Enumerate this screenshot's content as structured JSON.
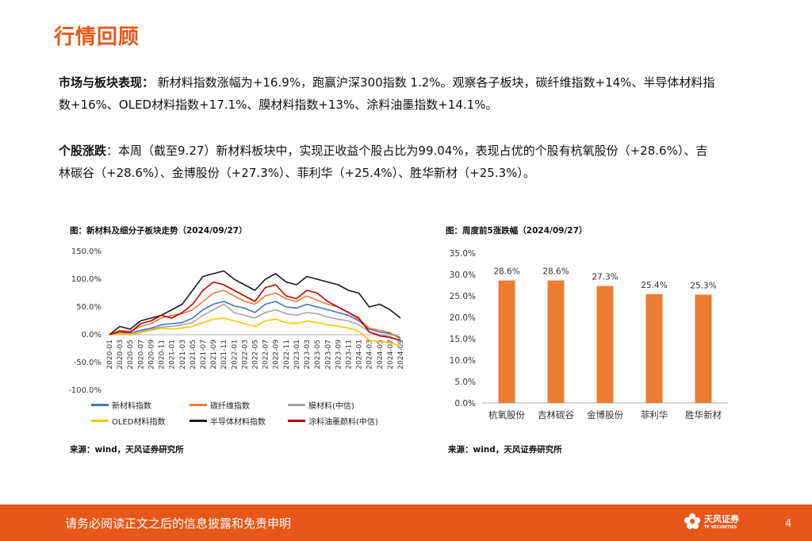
{
  "header": {
    "title": "行情回顾"
  },
  "paragraph1": {
    "label": "市场与板块表现：",
    "line1": "新材料指数涨幅为+16.9%，跑赢沪深300指数 1.2%。观察各子板块，碳纤维指数+14%、半导体材料指",
    "line2": "数+16%、OLED材料指数+17.1%、膜材料指数+13%、涂料油墨指数+14.1%。"
  },
  "paragraph2": {
    "label": "个股涨跌",
    "line1_rest": "：本周（截至9.27）新材料板块中，实现正收益个股占比为99.04%，表现占优的个股有杭氧股份（+28.6%）、吉",
    "line2": "林碳谷（+28.6%）、金博股份（+27.3%）、菲利华（+25.4%）、胜华新材（+25.3%）。"
  },
  "figure1": {
    "title": "图：新材料及细分子板块走势（2024/09/27）",
    "source": "来源：wind，天风证券研究所"
  },
  "figure2": {
    "title": "图：周度前5涨跌幅（2024/09/27）",
    "source": "来源：wind，天风证券研究所"
  },
  "chart_data": [
    {
      "type": "line",
      "y_tick_labels": [
        "150.0%",
        "100.0%",
        "50.0%",
        "0.0%",
        "-50.0%",
        "-100.0%"
      ],
      "ylim": [
        -100,
        150
      ],
      "x_tick_labels": [
        "2020-01",
        "2020-03",
        "2020-05",
        "2020-07",
        "2020-09",
        "2020-11",
        "2021-01",
        "2021-03",
        "2021-05",
        "2021-07",
        "2021-09",
        "2021-11",
        "2022-01",
        "2022-03",
        "2022-05",
        "2022-07",
        "2022-09",
        "2022-11",
        "2023-01",
        "2023-03",
        "2023-05",
        "2023-07",
        "2023-09",
        "2023-11",
        "2024-01",
        "2024-03",
        "2024-05",
        "2024-07",
        "2024-09"
      ],
      "legend_position": "bottom",
      "series": [
        {
          "name": "新材料指数",
          "color": "#4472c4",
          "values": [
            0,
            5,
            3,
            8,
            12,
            18,
            20,
            22,
            30,
            45,
            55,
            60,
            52,
            48,
            40,
            55,
            60,
            50,
            48,
            55,
            50,
            45,
            40,
            35,
            25,
            10,
            5,
            2,
            -5
          ]
        },
        {
          "name": "碳纤维指数",
          "color": "#ed7d31",
          "values": [
            0,
            8,
            6,
            15,
            20,
            30,
            35,
            38,
            45,
            60,
            75,
            80,
            70,
            60,
            55,
            70,
            75,
            65,
            60,
            70,
            62,
            55,
            50,
            40,
            28,
            12,
            8,
            4,
            -8
          ]
        },
        {
          "name": "膜材料(中信)",
          "color": "#a5a5a5",
          "values": [
            0,
            3,
            2,
            6,
            10,
            14,
            15,
            18,
            22,
            35,
            45,
            55,
            40,
            35,
            30,
            40,
            45,
            38,
            35,
            40,
            38,
            32,
            28,
            25,
            18,
            5,
            0,
            -3,
            -12
          ]
        },
        {
          "name": "OLED材料指数",
          "color": "#ffc000",
          "values": [
            0,
            2,
            0,
            4,
            8,
            12,
            10,
            12,
            15,
            22,
            28,
            30,
            25,
            20,
            15,
            25,
            28,
            22,
            20,
            25,
            22,
            18,
            15,
            12,
            6,
            -10,
            -12,
            -15,
            -20
          ]
        },
        {
          "name": "半导体材料指数",
          "color": "#1a1a1a",
          "values": [
            0,
            15,
            10,
            25,
            30,
            35,
            45,
            55,
            80,
            105,
            110,
            115,
            100,
            90,
            80,
            100,
            110,
            95,
            90,
            105,
            100,
            95,
            90,
            80,
            75,
            50,
            55,
            45,
            30
          ]
        },
        {
          "name": "涂料油墨颜料(中信)",
          "color": "#c00000",
          "values": [
            0,
            6,
            4,
            20,
            25,
            35,
            30,
            40,
            55,
            80,
            95,
            90,
            80,
            70,
            60,
            85,
            90,
            70,
            65,
            80,
            75,
            60,
            50,
            40,
            30,
            5,
            -2,
            -5,
            -10
          ]
        }
      ]
    },
    {
      "type": "bar",
      "categories": [
        "杭氧股份",
        "吉林碳谷",
        "金博股份",
        "菲利华",
        "胜华新材"
      ],
      "values": [
        28.6,
        28.6,
        27.3,
        25.4,
        25.3
      ],
      "value_labels": [
        "28.6%",
        "28.6%",
        "27.3%",
        "25.4%",
        "25.3%"
      ],
      "y_tick_labels": [
        "35.0%",
        "30.0%",
        "25.0%",
        "20.0%",
        "15.0%",
        "10.0%",
        "5.0%",
        "0.0%"
      ],
      "ylim": [
        0,
        35
      ],
      "color": "#ed7d31"
    }
  ],
  "footer": {
    "disclaimer": "请务必阅读正文之后的信息披露和免责申明",
    "logo_text": "天风证券",
    "logo_sub": "TF SECURITIES",
    "page_number": "4"
  }
}
